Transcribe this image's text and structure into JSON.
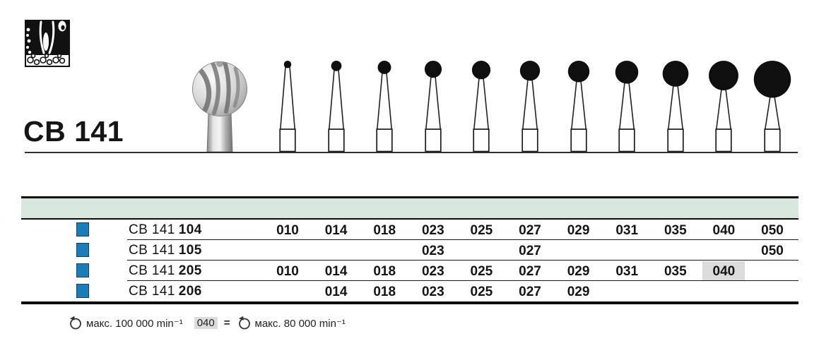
{
  "header": {
    "code": "CB 141"
  },
  "pictogram": {
    "meaning": "bone-and-teeth-pictogram"
  },
  "figure": {
    "ball_sizes_iso": [
      "010",
      "014",
      "018",
      "023",
      "025",
      "027",
      "029",
      "031",
      "035",
      "040",
      "050"
    ]
  },
  "table": {
    "band_color": "#d9e8df",
    "marker_color": "#1b7cba",
    "highlight_color": "#dcdcdc",
    "columns": [
      "010",
      "014",
      "018",
      "023",
      "025",
      "027",
      "029",
      "031",
      "035",
      "040",
      "050"
    ],
    "rows": [
      {
        "series": "CB 141",
        "variant": "104",
        "available": [
          "010",
          "014",
          "018",
          "023",
          "025",
          "027",
          "029",
          "031",
          "035",
          "040",
          "050"
        ],
        "highlighted": []
      },
      {
        "series": "CB 141",
        "variant": "105",
        "available": [
          "023",
          "027",
          "050"
        ],
        "highlighted": []
      },
      {
        "series": "CB 141",
        "variant": "205",
        "available": [
          "010",
          "014",
          "018",
          "023",
          "025",
          "027",
          "029",
          "031",
          "035",
          "040"
        ],
        "highlighted": [
          "040"
        ]
      },
      {
        "series": "CB 141",
        "variant": "206",
        "available": [
          "014",
          "018",
          "023",
          "025",
          "027",
          "029"
        ],
        "highlighted": []
      }
    ]
  },
  "footer": {
    "max_speed": "макс. 100 000 min⁻¹",
    "badge": "040",
    "equals": "=",
    "reduced_speed": "макс. 80 000 min⁻¹"
  }
}
